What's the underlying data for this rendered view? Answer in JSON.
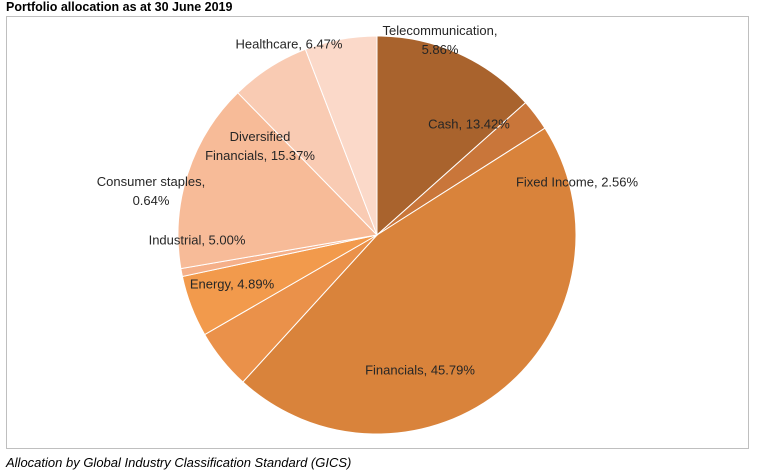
{
  "page": {
    "title": "Portfolio allocation as at 30 June 2019",
    "footer": "Allocation by Global Industry Classification Standard (GICS)"
  },
  "chart_data": {
    "type": "pie",
    "title": "Portfolio allocation as at 30 June 2019",
    "start_direction": "12 o'clock",
    "direction": "clockwise",
    "slices": [
      {
        "name": "Cash",
        "value": 13.42,
        "label_lines": [
          "Cash, 13.42%"
        ],
        "color": "#a9632d"
      },
      {
        "name": "Fixed Income",
        "value": 2.56,
        "label_lines": [
          "Fixed Income,  2.56%"
        ],
        "color": "#c9763a"
      },
      {
        "name": "Financials",
        "value": 45.79,
        "label_lines": [
          "Financials, 45.79%"
        ],
        "color": "#d9833b"
      },
      {
        "name": "Energy",
        "value": 4.89,
        "label_lines": [
          "Energy, 4.89%"
        ],
        "color": "#ea914a"
      },
      {
        "name": "Industrial",
        "value": 5.0,
        "label_lines": [
          "Industrial, 5.00%"
        ],
        "color": "#f29a4c"
      },
      {
        "name": "Consumer staples",
        "value": 0.64,
        "label_lines": [
          "Consumer staples,",
          "0.64%"
        ],
        "color": "#f5b089"
      },
      {
        "name": "Diversified Financials",
        "value": 15.37,
        "label_lines": [
          "Diversified",
          "Financials, 15.37%"
        ],
        "color": "#f7bb98"
      },
      {
        "name": "Healthcare",
        "value": 6.47,
        "label_lines": [
          "Healthcare, 6.47%"
        ],
        "color": "#f9cbb3"
      },
      {
        "name": "Telecommunication",
        "value": 5.86,
        "label_lines": [
          "Telecommunication,",
          "5.86%"
        ],
        "color": "#fbd9c9"
      }
    ]
  }
}
